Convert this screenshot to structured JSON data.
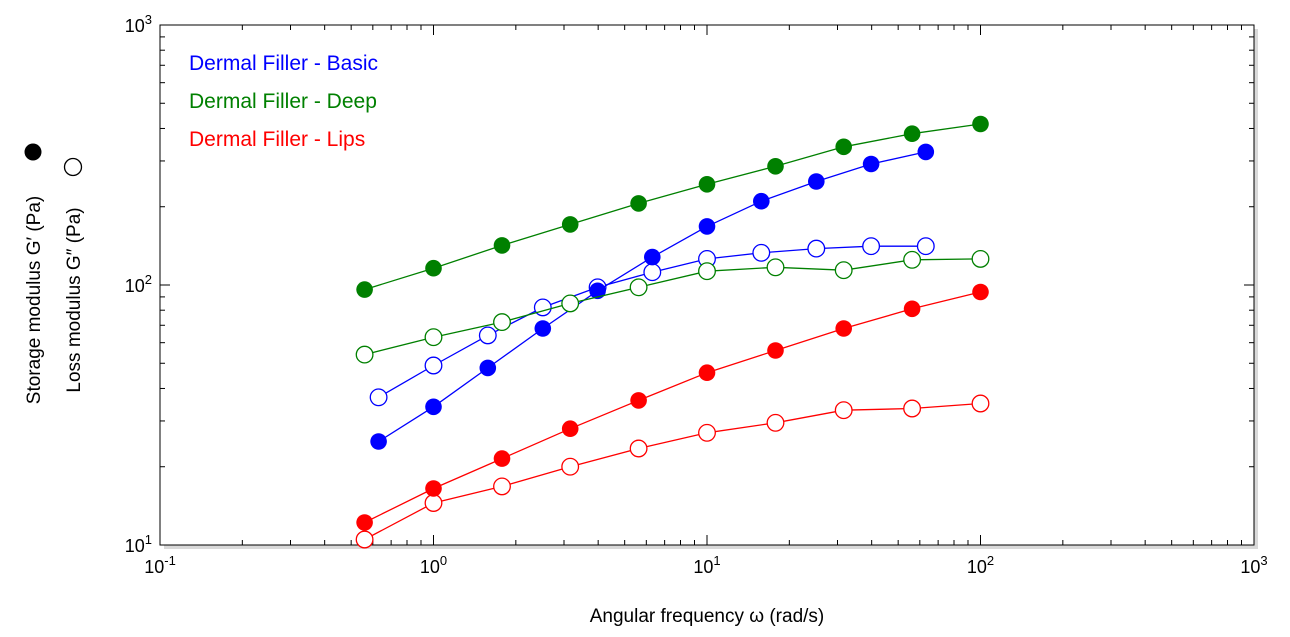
{
  "chart_data": {
    "type": "scatter",
    "xscale": "log",
    "yscale": "log",
    "xlim": [
      0.1,
      1000
    ],
    "ylim": [
      10,
      1000
    ],
    "grid": false,
    "legend_position": "top-left",
    "xlabel": "Angular frequency  ω  (rad/s)",
    "ylabel_storage": "Storage modulus  G′ (Pa)",
    "ylabel_loss": "Loss modulus  G″ (Pa)",
    "x_ticks": [
      {
        "base": "10",
        "exp": "-1"
      },
      {
        "base": "10",
        "exp": "0"
      },
      {
        "base": "10",
        "exp": "1"
      },
      {
        "base": "10",
        "exp": "2"
      },
      {
        "base": "10",
        "exp": "3"
      }
    ],
    "y_ticks": [
      {
        "base": "10",
        "exp": "1"
      },
      {
        "base": "10",
        "exp": "2"
      },
      {
        "base": "10",
        "exp": "3"
      }
    ],
    "series": [
      {
        "name": "Dermal Filler - Basic",
        "color": "#0000ff",
        "storage": {
          "x": [
            0.63,
            1.0,
            1.58,
            2.51,
            3.98,
            6.31,
            10.0,
            15.8,
            25.1,
            39.8,
            63.1
          ],
          "y": [
            25,
            34,
            48,
            68,
            95,
            128,
            168,
            210,
            250,
            292,
            325
          ]
        },
        "loss": {
          "x": [
            0.63,
            1.0,
            1.58,
            2.51,
            3.98,
            6.31,
            10.0,
            15.8,
            25.1,
            39.8,
            63.1
          ],
          "y": [
            37,
            49,
            64,
            82,
            98,
            112,
            126,
            133,
            138,
            141,
            141
          ]
        }
      },
      {
        "name": "Dermal Filler - Deep",
        "color": "#008000",
        "storage": {
          "x": [
            0.56,
            1.0,
            1.78,
            3.16,
            5.62,
            10.0,
            17.8,
            31.6,
            56.2,
            100
          ],
          "y": [
            96,
            116,
            142,
            171,
            206,
            244,
            286,
            340,
            382,
            416
          ]
        },
        "loss": {
          "x": [
            0.56,
            1.0,
            1.78,
            3.16,
            5.62,
            10.0,
            17.8,
            31.6,
            56.2,
            100
          ],
          "y": [
            54,
            63,
            72,
            85,
            98,
            113,
            117,
            114,
            125,
            126
          ]
        }
      },
      {
        "name": "Dermal Filler - Lips",
        "color": "#ff0000",
        "storage": {
          "x": [
            0.56,
            1.0,
            1.78,
            3.16,
            5.62,
            10.0,
            17.8,
            31.6,
            56.2,
            100
          ],
          "y": [
            12.2,
            16.5,
            21.5,
            28,
            36,
            46,
            56,
            68,
            81,
            94
          ]
        },
        "loss": {
          "x": [
            0.56,
            1.0,
            1.78,
            3.16,
            5.62,
            10.0,
            17.8,
            31.6,
            56.2,
            100
          ],
          "y": [
            10.5,
            14.5,
            16.8,
            20,
            23.5,
            27,
            29.5,
            33,
            33.5,
            35
          ]
        }
      }
    ]
  }
}
